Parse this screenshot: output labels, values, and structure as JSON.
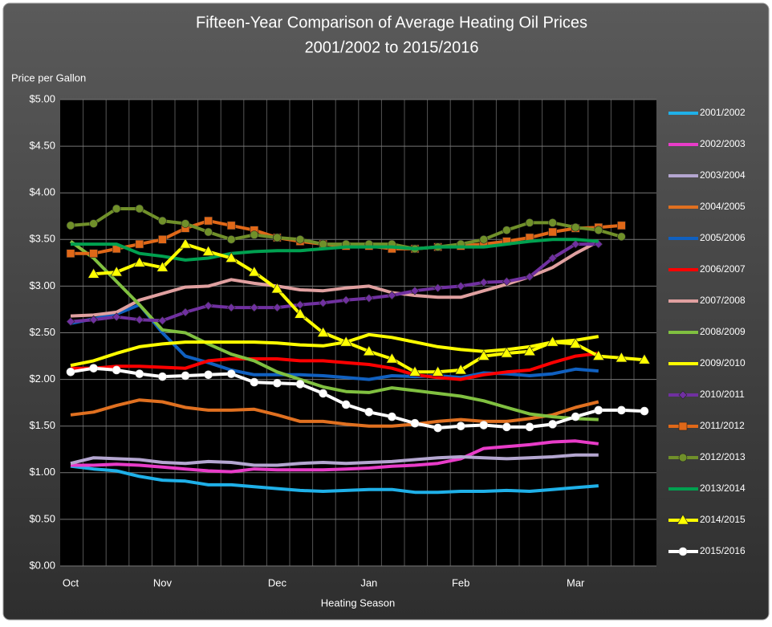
{
  "chart_data": {
    "type": "line",
    "title": "Fifteen-Year  Comparison of Average Heating Oil Prices",
    "subtitle": "2001/2002 to 2015/2016",
    "y_label": "Price per Gallon",
    "x_label": "Heating Season",
    "categories": [
      "Oct",
      null,
      null,
      null,
      "Nov",
      null,
      null,
      null,
      null,
      "Dec",
      null,
      null,
      null,
      "Jan",
      null,
      null,
      null,
      "Feb",
      null,
      null,
      null,
      null,
      "Mar",
      null,
      null,
      null
    ],
    "ylim": [
      0,
      5
    ],
    "yticks": [
      {
        "value": 0,
        "label": "$0.00"
      },
      {
        "value": 0.5,
        "label": "$0.50"
      },
      {
        "value": 1,
        "label": "$1.00"
      },
      {
        "value": 1.5,
        "label": "$1.50"
      },
      {
        "value": 2,
        "label": "$2.00"
      },
      {
        "value": 2.5,
        "label": "$2.50"
      },
      {
        "value": 3,
        "label": "$3.00"
      },
      {
        "value": 3.5,
        "label": "$3.50"
      },
      {
        "value": 4,
        "label": "$4.00"
      },
      {
        "value": 4.5,
        "label": "$4.50"
      },
      {
        "value": 5,
        "label": "$5.00"
      }
    ],
    "grid": true,
    "legend": "right",
    "series": [
      {
        "name": "2001/2002",
        "color": "#1fb0e8",
        "values": [
          1.07,
          1.04,
          1.02,
          0.96,
          0.92,
          0.91,
          0.87,
          0.87,
          0.85,
          0.83,
          0.81,
          0.8,
          0.81,
          0.82,
          0.82,
          0.79,
          0.79,
          0.8,
          0.8,
          0.81,
          0.8,
          0.82,
          0.84,
          0.86,
          null,
          null
        ]
      },
      {
        "name": "2002/2003",
        "color": "#e83cc8",
        "values": [
          1.08,
          1.08,
          1.09,
          1.08,
          1.06,
          1.04,
          1.02,
          1.01,
          1.04,
          1.03,
          1.03,
          1.03,
          1.04,
          1.05,
          1.07,
          1.08,
          1.1,
          1.15,
          1.26,
          1.28,
          1.3,
          1.33,
          1.34,
          1.31,
          null,
          null
        ]
      },
      {
        "name": "2003/2004",
        "color": "#b4a6d0",
        "values": [
          1.1,
          1.16,
          1.15,
          1.14,
          1.11,
          1.1,
          1.12,
          1.11,
          1.08,
          1.08,
          1.1,
          1.11,
          1.1,
          1.11,
          1.12,
          1.14,
          1.16,
          1.17,
          1.16,
          1.15,
          1.16,
          1.17,
          1.19,
          1.19,
          null,
          null
        ]
      },
      {
        "name": "2004/2005",
        "color": "#e07020",
        "values": [
          1.62,
          1.65,
          1.72,
          1.78,
          1.76,
          1.7,
          1.67,
          1.67,
          1.68,
          1.62,
          1.55,
          1.55,
          1.52,
          1.5,
          1.5,
          1.52,
          1.55,
          1.57,
          1.55,
          1.55,
          1.58,
          1.62,
          1.7,
          1.76,
          null,
          null
        ]
      },
      {
        "name": "2005/2006",
        "color": "#1060c0",
        "values": [
          2.6,
          2.65,
          2.7,
          2.8,
          2.5,
          2.25,
          2.18,
          2.1,
          2.05,
          2.05,
          2.05,
          2.04,
          2.02,
          2.0,
          2.04,
          2.03,
          2.04,
          2.02,
          2.07,
          2.06,
          2.04,
          2.06,
          2.11,
          2.09,
          null,
          null
        ]
      },
      {
        "name": "2006/2007",
        "color": "#ff0000",
        "values": [
          2.12,
          2.12,
          2.14,
          2.14,
          2.13,
          2.12,
          2.2,
          2.22,
          2.22,
          2.22,
          2.2,
          2.2,
          2.18,
          2.16,
          2.12,
          2.05,
          2.02,
          2.0,
          2.05,
          2.08,
          2.1,
          2.18,
          2.25,
          2.28,
          null,
          null
        ]
      },
      {
        "name": "2007/2008",
        "color": "#e0a0a0",
        "values": [
          2.68,
          2.69,
          2.72,
          2.85,
          2.92,
          2.99,
          3.0,
          3.07,
          3.03,
          3.0,
          2.96,
          2.95,
          2.98,
          3.0,
          2.93,
          2.9,
          2.88,
          2.88,
          2.95,
          3.02,
          3.1,
          3.2,
          3.35,
          3.48,
          null,
          null
        ]
      },
      {
        "name": "2008/2009",
        "color": "#80c040",
        "values": [
          3.48,
          3.3,
          3.05,
          2.8,
          2.53,
          2.5,
          2.38,
          2.27,
          2.2,
          2.08,
          2.0,
          1.92,
          1.87,
          1.86,
          1.91,
          1.88,
          1.85,
          1.82,
          1.77,
          1.7,
          1.63,
          1.6,
          1.58,
          1.57,
          null,
          null
        ]
      },
      {
        "name": "2009/2010",
        "color": "#ffff00",
        "values": [
          2.15,
          2.2,
          2.28,
          2.35,
          2.38,
          2.4,
          2.4,
          2.4,
          2.4,
          2.39,
          2.37,
          2.36,
          2.4,
          2.48,
          2.45,
          2.4,
          2.35,
          2.32,
          2.3,
          2.32,
          2.35,
          2.4,
          2.42,
          2.46,
          null,
          null
        ]
      },
      {
        "name": "2010/2011",
        "color": "#7030a0",
        "marker": "diamond",
        "values": [
          2.62,
          2.64,
          2.67,
          2.64,
          2.63,
          2.72,
          2.79,
          2.77,
          2.77,
          2.77,
          2.8,
          2.82,
          2.85,
          2.87,
          2.9,
          2.95,
          2.98,
          3.0,
          3.04,
          3.05,
          3.1,
          3.3,
          3.45,
          3.45,
          null,
          null
        ]
      },
      {
        "name": "2011/2012",
        "color": "#e06818",
        "marker": "square",
        "values": [
          3.35,
          3.35,
          3.4,
          3.45,
          3.5,
          3.62,
          3.7,
          3.65,
          3.6,
          3.52,
          3.48,
          3.45,
          3.43,
          3.43,
          3.4,
          3.4,
          3.42,
          3.43,
          3.45,
          3.48,
          3.52,
          3.58,
          3.62,
          3.63,
          3.65,
          null
        ]
      },
      {
        "name": "2012/2013",
        "color": "#70902a",
        "marker": "circle",
        "values": [
          3.65,
          3.67,
          3.83,
          3.83,
          3.7,
          3.67,
          3.58,
          3.5,
          3.55,
          3.52,
          3.5,
          3.45,
          3.45,
          3.45,
          3.45,
          3.4,
          3.42,
          3.45,
          3.5,
          3.6,
          3.68,
          3.68,
          3.63,
          3.6,
          3.53,
          null
        ]
      },
      {
        "name": "2013/2014",
        "color": "#00a050",
        "values": [
          3.45,
          3.45,
          3.45,
          3.35,
          3.32,
          3.28,
          3.3,
          3.35,
          3.37,
          3.38,
          3.38,
          3.4,
          3.42,
          3.42,
          3.42,
          3.4,
          3.42,
          3.42,
          3.42,
          3.45,
          3.48,
          3.5,
          3.5,
          3.48,
          null,
          null
        ]
      },
      {
        "name": "2014/2015",
        "color": "#ffff00",
        "marker": "triangle",
        "values": [
          null,
          3.13,
          3.15,
          3.25,
          3.2,
          3.45,
          3.37,
          3.3,
          3.15,
          2.97,
          2.7,
          2.5,
          2.4,
          2.3,
          2.22,
          2.08,
          2.08,
          2.1,
          2.25,
          2.28,
          2.3,
          2.4,
          2.38,
          2.25,
          2.23,
          2.21
        ]
      },
      {
        "name": "2015/2016",
        "color": "#ffffff",
        "marker": "circle",
        "values": [
          2.08,
          2.12,
          2.1,
          2.06,
          2.03,
          2.04,
          2.05,
          2.06,
          1.97,
          1.96,
          1.95,
          1.85,
          1.73,
          1.65,
          1.6,
          1.53,
          1.48,
          1.5,
          1.51,
          1.49,
          1.49,
          1.52,
          1.6,
          1.67,
          1.67,
          1.66
        ]
      }
    ]
  }
}
